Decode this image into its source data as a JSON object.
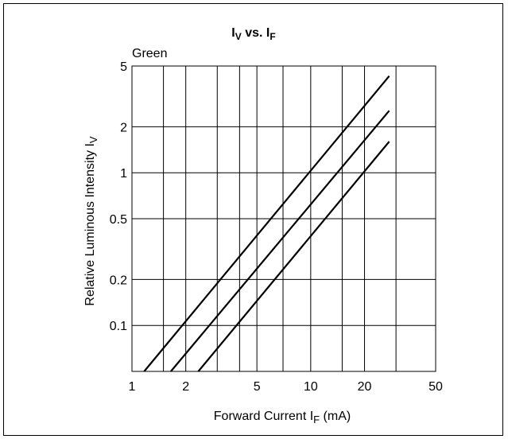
{
  "chart_data": {
    "type": "line",
    "title": "IV vs. IF",
    "title_parts": {
      "main1": "I",
      "sub1": "V",
      "mid": " vs. I",
      "sub2": "F"
    },
    "annotation": "Green",
    "xlabel": "Forward Current IF (mA)",
    "xlabel_parts": {
      "pre": "Forward Current I",
      "sub": "F",
      "post": " (mA)"
    },
    "ylabel": "Relative Luminous Intensity IV",
    "ylabel_parts": {
      "pre": "Relative Luminous Intensity I",
      "sub": "V"
    },
    "x_scale": "log",
    "y_scale": "log",
    "xlim": [
      1,
      50
    ],
    "ylim": [
      0.05,
      5
    ],
    "x_ticks": [
      1,
      2,
      5,
      10,
      20,
      50
    ],
    "x_tick_labels": [
      "1",
      "2",
      "5",
      "10",
      "20",
      "50"
    ],
    "y_ticks": [
      0.1,
      0.2,
      0.5,
      1,
      2,
      5
    ],
    "y_tick_labels": [
      "0.1",
      "0.2",
      "0.5",
      "1",
      "2",
      "5"
    ],
    "x_gridlines": [
      1,
      1.5,
      2,
      3,
      4,
      5,
      7,
      10,
      15,
      20,
      30,
      50
    ],
    "y_gridlines": [
      0.1,
      0.2,
      0.5,
      1,
      2,
      5
    ],
    "grid": true,
    "series": [
      {
        "x": [
          1.17,
          27.5
        ],
        "y": [
          0.05,
          4.3
        ]
      },
      {
        "x": [
          1.65,
          27.5
        ],
        "y": [
          0.05,
          2.55
        ]
      },
      {
        "x": [
          2.35,
          27.5
        ],
        "y": [
          0.05,
          1.6
        ]
      }
    ]
  }
}
